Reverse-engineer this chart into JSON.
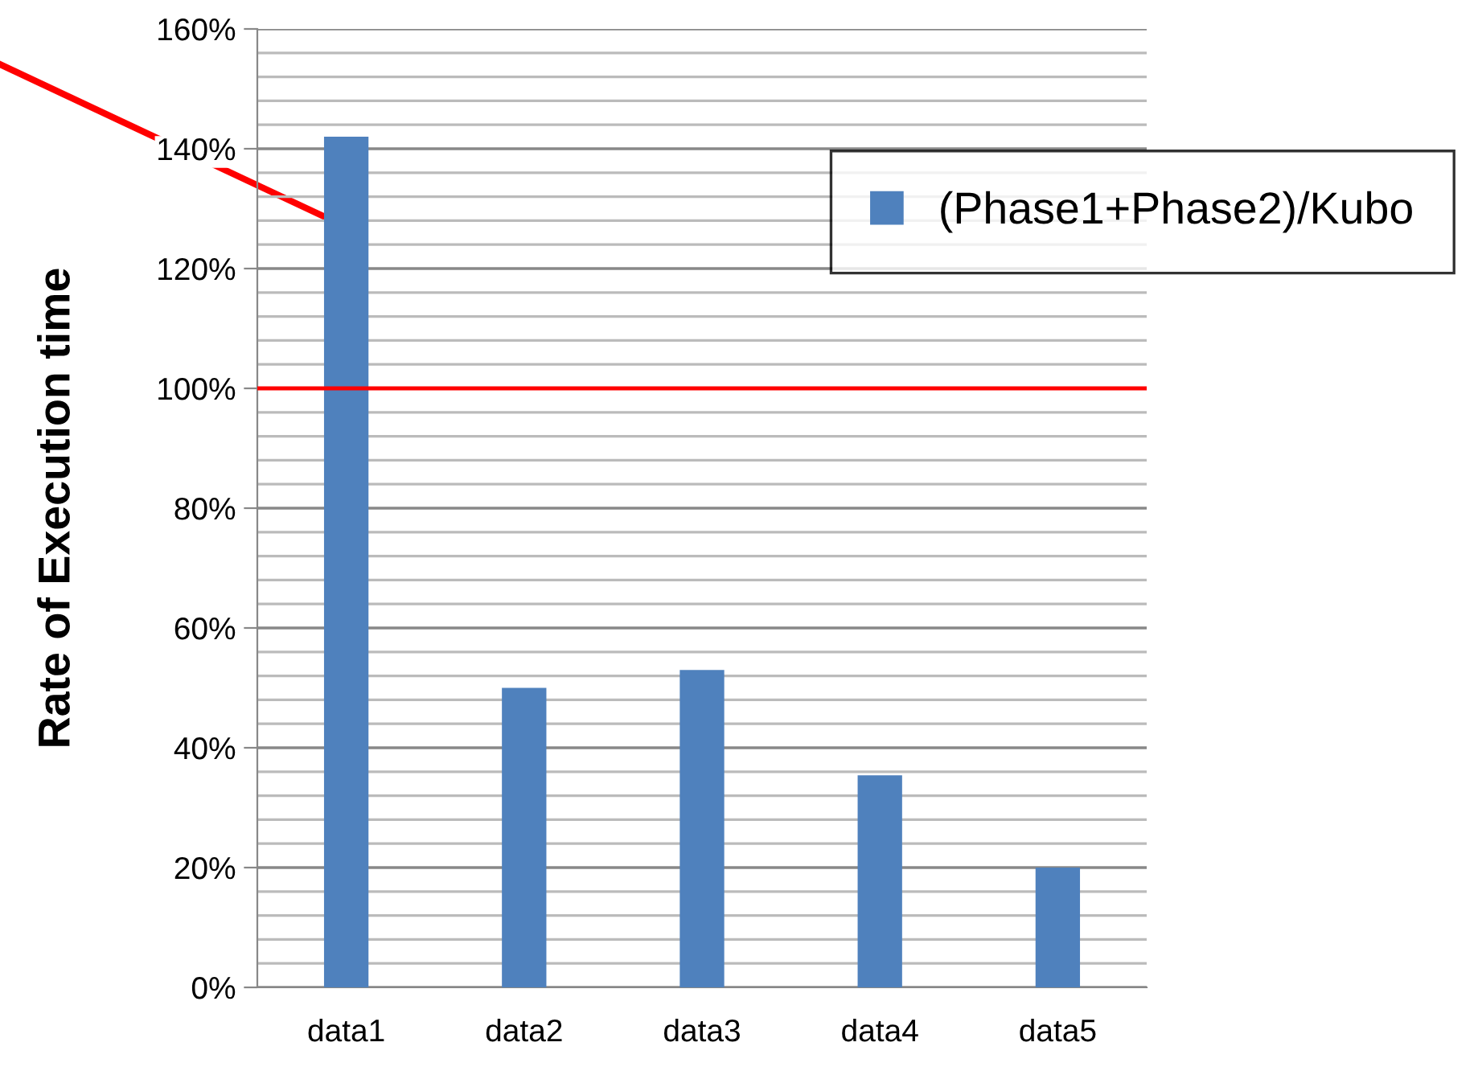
{
  "chart_data": {
    "type": "bar",
    "ylabel": "Rate of Execution time",
    "categories": [
      "data1",
      "data2",
      "data3",
      "data4",
      "data5"
    ],
    "series": [
      {
        "name": "(Phase1+Phase2)/Kubo",
        "color": "#4f81bd",
        "values": [
          142,
          50,
          53,
          35.4,
          20
        ]
      }
    ],
    "ylim": [
      0,
      160
    ],
    "yticks": [
      {
        "value": 0,
        "label": "0%"
      },
      {
        "value": 4,
        "label": null
      },
      {
        "value": 8,
        "label": null
      },
      {
        "value": 12,
        "label": null
      },
      {
        "value": 16,
        "label": null
      },
      {
        "value": 20,
        "label": "20%"
      },
      {
        "value": 24,
        "label": null
      },
      {
        "value": 28,
        "label": null
      },
      {
        "value": 32,
        "label": null
      },
      {
        "value": 36,
        "label": null
      },
      {
        "value": 40,
        "label": "40%"
      },
      {
        "value": 44,
        "label": null
      },
      {
        "value": 48,
        "label": null
      },
      {
        "value": 52,
        "label": null
      },
      {
        "value": 56,
        "label": null
      },
      {
        "value": 60,
        "label": "60%"
      },
      {
        "value": 64,
        "label": null
      },
      {
        "value": 68,
        "label": null
      },
      {
        "value": 72,
        "label": null
      },
      {
        "value": 76,
        "label": null
      },
      {
        "value": 80,
        "label": "80%"
      },
      {
        "value": 84,
        "label": null
      },
      {
        "value": 88,
        "label": null
      },
      {
        "value": 92,
        "label": null
      },
      {
        "value": 96,
        "label": null
      },
      {
        "value": 100,
        "label": "100%"
      },
      {
        "value": 104,
        "label": null
      },
      {
        "value": 108,
        "label": null
      },
      {
        "value": 112,
        "label": null
      },
      {
        "value": 116,
        "label": null
      },
      {
        "value": 120,
        "label": "120%"
      },
      {
        "value": 124,
        "label": null
      },
      {
        "value": 128,
        "label": null
      },
      {
        "value": 132,
        "label": null
      },
      {
        "value": 136,
        "label": null
      },
      {
        "value": 140,
        "label": "140%"
      },
      {
        "value": 144,
        "label": null
      },
      {
        "value": 148,
        "label": null
      },
      {
        "value": 152,
        "label": null
      },
      {
        "value": 156,
        "label": null
      },
      {
        "value": 160,
        "label": "160%"
      }
    ],
    "ref_lines": [
      {
        "axis": "y",
        "value": 100,
        "color": "#ff0000"
      }
    ],
    "grid": "y",
    "legend": "top right"
  }
}
